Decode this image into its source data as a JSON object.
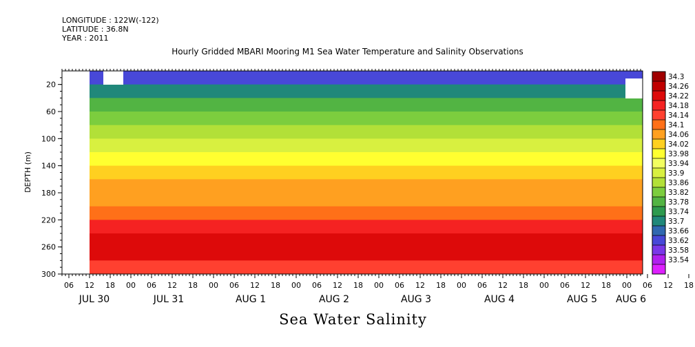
{
  "header": {
    "longitude": "LONGITUDE : 122W(-122)",
    "latitude": "LATITUDE : 36.8N",
    "year": "YEAR : 2011"
  },
  "chart_data": {
    "type": "heatmap",
    "title": "Hourly Gridded MBARI Mooring M1 Sea Water Temperature and Salinity Observations",
    "bottom_title": "Sea Water Salinity",
    "ylabel": "DEPTH (m)",
    "ylim": [
      0,
      300
    ],
    "y_inverted": true,
    "y_ticks": [
      20,
      60,
      100,
      140,
      180,
      220,
      260,
      300
    ],
    "x_hour_labels": [
      "06",
      "12",
      "18",
      "00",
      "06",
      "12",
      "18",
      "00",
      "06",
      "12",
      "18",
      "00",
      "06",
      "12",
      "18",
      "00",
      "06",
      "12",
      "18",
      "00",
      "06",
      "12",
      "18",
      "00",
      "06",
      "12",
      "18",
      "00",
      "06",
      "12",
      "18",
      "00"
    ],
    "x_day_labels": [
      "JUL 30",
      "JUL 31",
      "AUG  1",
      "AUG  2",
      "AUG  3",
      "AUG  4",
      "AUG  5",
      "AUG  6"
    ],
    "colorbar_levels": [
      "34.3",
      "34.26",
      "34.22",
      "34.18",
      "34.14",
      "34.1",
      "34.06",
      "34.02",
      "33.98",
      "33.94",
      "33.9",
      "33.86",
      "33.82",
      "33.78",
      "33.74",
      "33.7",
      "33.66",
      "33.62",
      "33.58",
      "33.54"
    ],
    "colorbar_colors": [
      "#a00000",
      "#c00000",
      "#dd0a0a",
      "#f52222",
      "#ff4030",
      "#ff7018",
      "#ffa020",
      "#ffd020",
      "#ffff30",
      "#f2ff60",
      "#d8f040",
      "#b2e038",
      "#7ccd3e",
      "#52b443",
      "#2d9a4e",
      "#20887a",
      "#3068b0",
      "#4848d8",
      "#7a38e8",
      "#b020ee",
      "#dd20ff"
    ],
    "depth_profile": [
      {
        "depth": 10,
        "salinity": 33.64
      },
      {
        "depth": 30,
        "salinity": 33.7
      },
      {
        "depth": 50,
        "salinity": 33.78
      },
      {
        "depth": 70,
        "salinity": 33.84
      },
      {
        "depth": 90,
        "salinity": 33.87
      },
      {
        "depth": 110,
        "salinity": 33.93
      },
      {
        "depth": 130,
        "salinity": 33.99
      },
      {
        "depth": 150,
        "salinity": 34.05
      },
      {
        "depth": 170,
        "salinity": 34.08
      },
      {
        "depth": 190,
        "salinity": 34.09
      },
      {
        "depth": 210,
        "salinity": 34.13
      },
      {
        "depth": 230,
        "salinity": 34.19
      },
      {
        "depth": 250,
        "salinity": 34.25
      },
      {
        "depth": 270,
        "salinity": 34.22
      },
      {
        "depth": 290,
        "salinity": 34.16
      }
    ]
  }
}
